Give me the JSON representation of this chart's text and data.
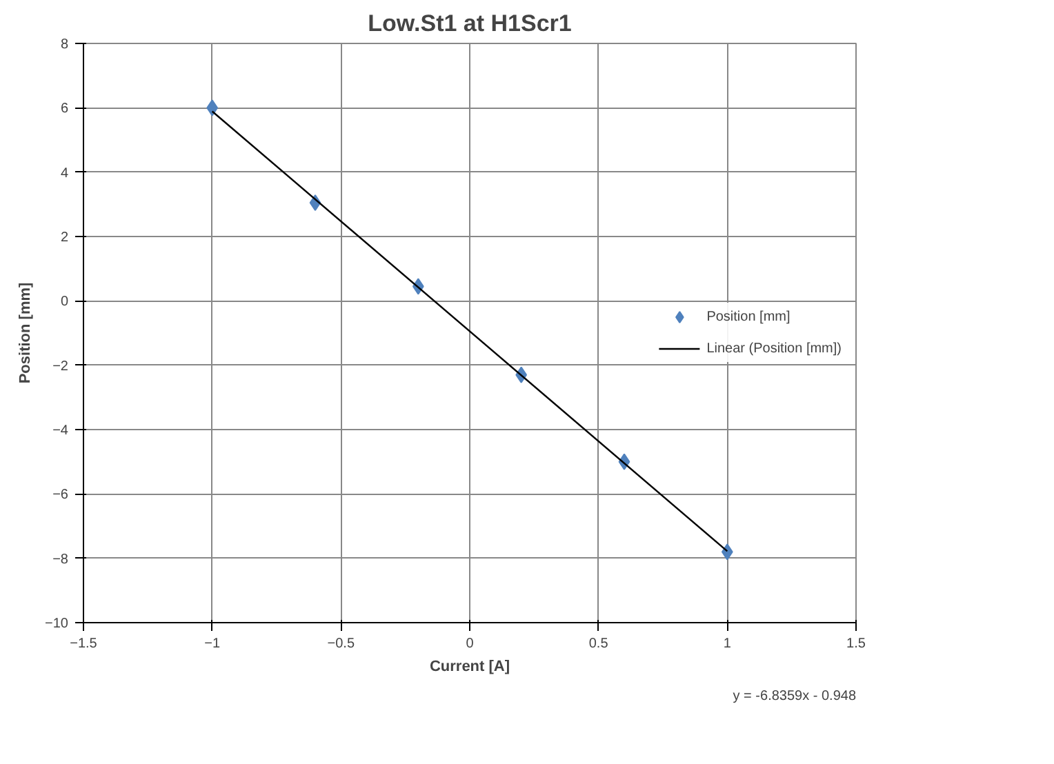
{
  "chart_data": {
    "type": "scatter",
    "title": "Low.St1 at H1Scr1",
    "xlabel": "Current [A]",
    "ylabel": "Position [mm]",
    "x": [
      -1,
      -0.6,
      -0.2,
      0.2,
      0.6,
      1
    ],
    "series": [
      {
        "name": "Position [mm]",
        "color": "#4f81bd",
        "values": [
          6,
          3.05,
          0.45,
          -2.3,
          -5.0,
          -7.8
        ],
        "marker": "diamond"
      },
      {
        "name": "Linear (Position [mm])",
        "type": "line",
        "color": "#000000",
        "x": [
          -1,
          1
        ],
        "values": [
          5.89,
          -7.78
        ],
        "marker": "none"
      }
    ],
    "xlim": [
      -1.5,
      1.5
    ],
    "xticks": [
      -1.5,
      -1,
      -0.5,
      0,
      0.5,
      1,
      1.5
    ],
    "ylim": [
      -10,
      8
    ],
    "yticks": [
      -10,
      -8,
      -6,
      -4,
      -2,
      0,
      2,
      4,
      6,
      8
    ],
    "grid": true,
    "legend": "right",
    "annotations": [
      "y = -6.8359x - 0.948"
    ]
  }
}
